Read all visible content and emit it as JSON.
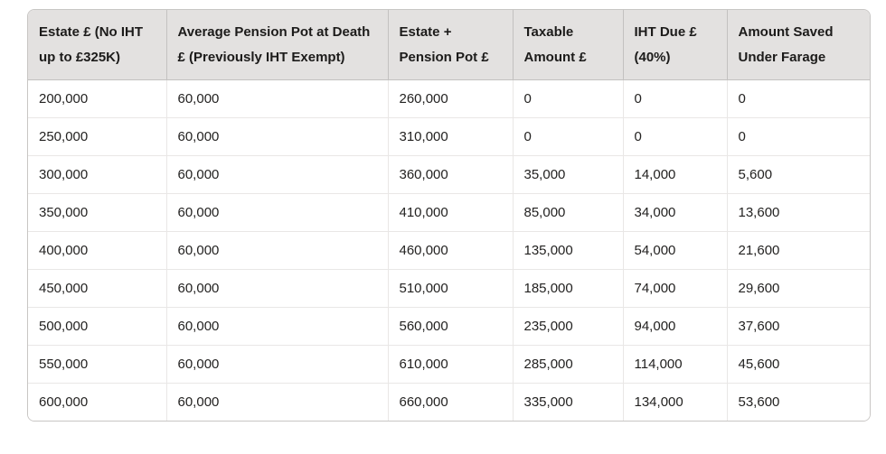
{
  "colors": {
    "header_bg": "#e3e1e0",
    "outer_border": "#c8c6c4",
    "header_divider": "#c3c1c0",
    "body_divider": "#e9e7e6",
    "text": "#232221"
  },
  "table": {
    "columns": [
      {
        "key": "estate-no-iht",
        "label": "Estate £ (No IHT up to £325K)"
      },
      {
        "key": "avg-pension-pot",
        "label": "Average Pension Pot at Death £ (Previously IHT Exempt)"
      },
      {
        "key": "estate-plus-pension",
        "label": "Estate + Pension Pot £"
      },
      {
        "key": "taxable-amount",
        "label": "Taxable Amount £"
      },
      {
        "key": "iht-due",
        "label": "IHT Due £ (40%)"
      },
      {
        "key": "amount-saved",
        "label": "Amount Saved Under Farage"
      }
    ],
    "rows": [
      [
        "200,000",
        "60,000",
        "260,000",
        "0",
        "0",
        "0"
      ],
      [
        "250,000",
        "60,000",
        "310,000",
        "0",
        "0",
        "0"
      ],
      [
        "300,000",
        "60,000",
        "360,000",
        "35,000",
        "14,000",
        "5,600"
      ],
      [
        "350,000",
        "60,000",
        "410,000",
        "85,000",
        "34,000",
        "13,600"
      ],
      [
        "400,000",
        "60,000",
        "460,000",
        "135,000",
        "54,000",
        "21,600"
      ],
      [
        "450,000",
        "60,000",
        "510,000",
        "185,000",
        "74,000",
        "29,600"
      ],
      [
        "500,000",
        "60,000",
        "560,000",
        "235,000",
        "94,000",
        "37,600"
      ],
      [
        "550,000",
        "60,000",
        "610,000",
        "285,000",
        "114,000",
        "45,600"
      ],
      [
        "600,000",
        "60,000",
        "660,000",
        "335,000",
        "134,000",
        "53,600"
      ]
    ]
  },
  "chart_data": {
    "type": "table",
    "title": "",
    "columns": [
      "Estate £ (No IHT up to £325K)",
      "Average Pension Pot at Death £ (Previously IHT Exempt)",
      "Estate + Pension Pot £",
      "Taxable Amount £",
      "IHT Due £ (40%)",
      "Amount Saved Under Farage"
    ],
    "rows": [
      [
        200000,
        60000,
        260000,
        0,
        0,
        0
      ],
      [
        250000,
        60000,
        310000,
        0,
        0,
        0
      ],
      [
        300000,
        60000,
        360000,
        35000,
        14000,
        5600
      ],
      [
        350000,
        60000,
        410000,
        85000,
        34000,
        13600
      ],
      [
        400000,
        60000,
        460000,
        135000,
        54000,
        21600
      ],
      [
        450000,
        60000,
        510000,
        185000,
        74000,
        29600
      ],
      [
        500000,
        60000,
        560000,
        235000,
        94000,
        37600
      ],
      [
        550000,
        60000,
        610000,
        285000,
        114000,
        45600
      ],
      [
        600000,
        60000,
        660000,
        335000,
        134000,
        53600
      ]
    ]
  }
}
